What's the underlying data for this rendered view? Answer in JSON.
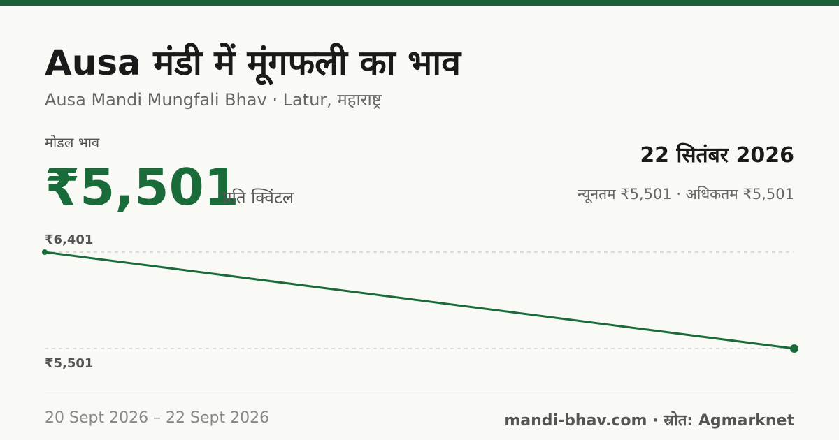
{
  "header": {
    "title": "Ausa मंडी में मूंगफली का भाव",
    "subtitle": "Ausa Mandi Mungfali Bhav · Latur, महाराष्ट्र"
  },
  "price": {
    "label": "मोडल भाव",
    "value": "₹5,501",
    "unit": "प्रति क्विंटल",
    "date": "22 सितंबर 2026",
    "range": "न्यूनतम ₹5,501 · अधिकतम ₹5,501"
  },
  "chart_data": {
    "type": "line",
    "categories": [
      null,
      null
    ],
    "series": [
      {
        "color": "#1a6b3a",
        "values": [
          6401,
          5501
        ]
      }
    ],
    "ylim": [
      5501,
      6401
    ],
    "yticks": [
      {
        "value": 6401,
        "label": "₹6,401"
      },
      {
        "value": 5501,
        "label": "₹5,501"
      }
    ],
    "grid": true
  },
  "footer": {
    "dates": "20 Sept 2026 – 22 Sept 2026",
    "source": "mandi-bhav.com · स्रोत: Agmarknet"
  }
}
